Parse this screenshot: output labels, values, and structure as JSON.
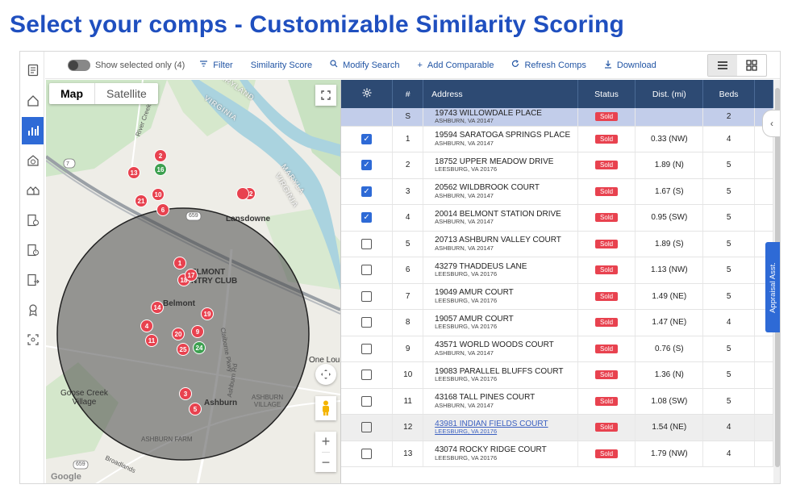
{
  "page_title": "Select your comps - Customizable Similarity Scoring",
  "toolbar": {
    "show_selected": "Show selected only (4)",
    "filter": "Filter",
    "similarity_score": "Similarity Score",
    "modify_search": "Modify Search",
    "add_comparable": "Add Comparable",
    "refresh_comps": "Refresh Comps",
    "download": "Download"
  },
  "map": {
    "tab_map": "Map",
    "tab_satellite": "Satellite",
    "labels": {
      "lansdowne": "Lansdowne",
      "belmont": "Belmont",
      "belmont_cc": "ELMONT\nNTRY CLUB",
      "ashburn": "Ashburn",
      "ashburn_village": "ASHBURN\nVILLAGE",
      "goose_creek": "Goose Creek\nVillage",
      "ashburn_farm": "ASHBURN FARM",
      "one_lou": "One Lou",
      "maryland": "MARYLAND",
      "virginia1": "VIRGINIA",
      "virginia2": "VIRGINIA",
      "maryland2": "MARYLA",
      "river_creek": "River Creek Pk",
      "claiborne": "Claiborne Pkwy",
      "ashburn_rd": "Ashburn Rd",
      "broadlands": "Broadlands",
      "google": "Google",
      "route7": "7",
      "route659": "659",
      "route659b": "659"
    },
    "markers_red": [
      "2",
      "13",
      "10",
      "21",
      "6",
      "12",
      "1",
      "18",
      "17",
      "14",
      "19",
      "4",
      "11",
      "20",
      "9",
      "25",
      "3",
      "5"
    ],
    "markers_green": [
      "16",
      "24"
    ]
  },
  "table": {
    "headers": [
      "#",
      "Address",
      "Status",
      "Dist. (mi)",
      "Beds"
    ],
    "subject": {
      "num": "S",
      "street": "19743 WILLOWDALE PLACE",
      "city": "ASHBURN, VA 20147",
      "status": "Sold",
      "dist": "",
      "beds": "2"
    },
    "rows": [
      {
        "num": "1",
        "street": "19594 SARATOGA SPRINGS PLACE",
        "city": "ASHBURN, VA 20147",
        "status": "Sold",
        "dist": "0.33 (NW)",
        "beds": "4",
        "checked": true
      },
      {
        "num": "2",
        "street": "18752 UPPER MEADOW DRIVE",
        "city": "LEESBURG, VA 20176",
        "status": "Sold",
        "dist": "1.89 (N)",
        "beds": "5",
        "checked": true
      },
      {
        "num": "3",
        "street": "20562 WILDBROOK COURT",
        "city": "ASHBURN, VA 20147",
        "status": "Sold",
        "dist": "1.67 (S)",
        "beds": "5",
        "checked": true
      },
      {
        "num": "4",
        "street": "20014 BELMONT STATION DRIVE",
        "city": "ASHBURN, VA 20147",
        "status": "Sold",
        "dist": "0.95 (SW)",
        "beds": "5",
        "checked": true
      },
      {
        "num": "5",
        "street": "20713 ASHBURN VALLEY COURT",
        "city": "ASHBURN, VA 20147",
        "status": "Sold",
        "dist": "1.89 (S)",
        "beds": "5",
        "checked": false
      },
      {
        "num": "6",
        "street": "43279 THADDEUS LANE",
        "city": "LEESBURG, VA 20176",
        "status": "Sold",
        "dist": "1.13 (NW)",
        "beds": "5",
        "checked": false
      },
      {
        "num": "7",
        "street": "19049 AMUR COURT",
        "city": "LEESBURG, VA 20176",
        "status": "Sold",
        "dist": "1.49 (NE)",
        "beds": "5",
        "checked": false
      },
      {
        "num": "8",
        "street": "19057 AMUR COURT",
        "city": "LEESBURG, VA 20176",
        "status": "Sold",
        "dist": "1.47 (NE)",
        "beds": "4",
        "checked": false
      },
      {
        "num": "9",
        "street": "43571 WORLD WOODS COURT",
        "city": "ASHBURN, VA 20147",
        "status": "Sold",
        "dist": "0.76 (S)",
        "beds": "5",
        "checked": false
      },
      {
        "num": "10",
        "street": "19083 PARALLEL BLUFFS COURT",
        "city": "LEESBURG, VA 20176",
        "status": "Sold",
        "dist": "1.36 (N)",
        "beds": "5",
        "checked": false
      },
      {
        "num": "11",
        "street": "43168 TALL PINES COURT",
        "city": "ASHBURN, VA 20147",
        "status": "Sold",
        "dist": "1.08 (SW)",
        "beds": "5",
        "checked": false
      },
      {
        "num": "12",
        "street": "43981 INDIAN FIELDS COURT",
        "city": "LEESBURG, VA 20176",
        "status": "Sold",
        "dist": "1.54 (NE)",
        "beds": "4",
        "checked": false
      },
      {
        "num": "13",
        "street": "43074 ROCKY RIDGE COURT",
        "city": "LEESBURG, VA 20176",
        "status": "Sold",
        "dist": "1.79 (NW)",
        "beds": "4",
        "checked": false
      }
    ]
  },
  "side_tab": "Appraisal Asst.",
  "icons": {
    "settings": "gear-icon",
    "list_view": "list-view-icon",
    "grid_view": "grid-view-icon"
  },
  "colors": {
    "title": "#1f4fbf",
    "header": "#2d4a73",
    "sold": "#e8424f",
    "accent": "#2e6ad6",
    "subject_row": "#c2cdea"
  }
}
